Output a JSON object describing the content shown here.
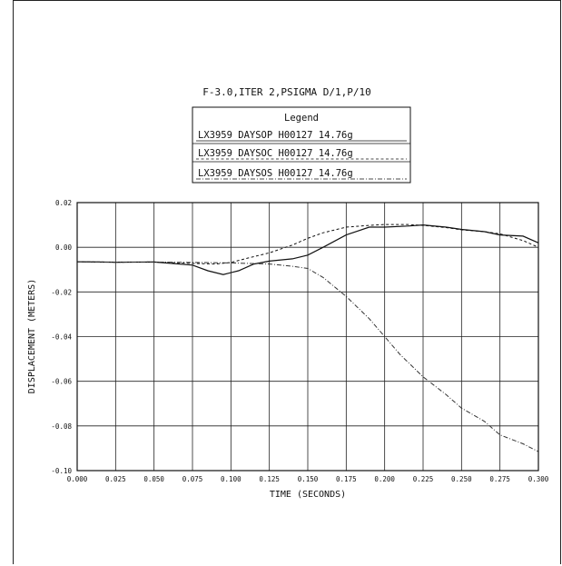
{
  "chart_data": {
    "type": "line",
    "title": "F-3.0,ITER 2,PSIGMA D/1,P/10",
    "legend_title": "Legend",
    "legend_position": "top-center",
    "xlabel": "TIME (SECONDS)",
    "ylabel": "DISPLACEMENT (METERS)",
    "xlim": [
      0.0,
      0.3
    ],
    "ylim": [
      -0.1,
      0.02
    ],
    "grid": true,
    "x_ticks": [
      0.0,
      0.025,
      0.05,
      0.075,
      0.1,
      0.125,
      0.15,
      0.175,
      0.2,
      0.225,
      0.25,
      0.275,
      0.3
    ],
    "x_tick_labels": [
      "0.000",
      "0.025",
      "0.050",
      "0.075",
      "0.100",
      "0.125",
      "0.150",
      "0.175",
      "0.200",
      "0.225",
      "0.250",
      "0.275",
      "0.300"
    ],
    "y_ticks": [
      0.02,
      0.0,
      -0.02,
      -0.04,
      -0.06,
      -0.08,
      -0.1
    ],
    "y_tick_labels": [
      "0.02",
      "0.00",
      "-0.02",
      "-0.04",
      "-0.06",
      "-0.08",
      "-0.10"
    ],
    "series": [
      {
        "name": "LX3959 DAYSOP  H00127  14.76g",
        "style": "solid",
        "color": "#111111",
        "x": [
          0.0,
          0.025,
          0.05,
          0.075,
          0.085,
          0.095,
          0.105,
          0.115,
          0.125,
          0.14,
          0.15,
          0.16,
          0.175,
          0.19,
          0.2,
          0.215,
          0.225,
          0.24,
          0.25,
          0.265,
          0.275,
          0.29,
          0.3
        ],
        "y": [
          -0.0065,
          -0.0067,
          -0.0066,
          -0.008,
          -0.0105,
          -0.0122,
          -0.0105,
          -0.0075,
          -0.0062,
          -0.0052,
          -0.0035,
          0.0,
          0.0055,
          0.009,
          0.009,
          0.0095,
          0.01,
          0.009,
          0.008,
          0.007,
          0.0055,
          0.005,
          0.002
        ]
      },
      {
        "name": "LX3959 DAYSOC  H00127  14.76g",
        "style": "dashed",
        "color": "#111111",
        "x": [
          0.0,
          0.025,
          0.05,
          0.075,
          0.09,
          0.1,
          0.11,
          0.125,
          0.14,
          0.15,
          0.16,
          0.175,
          0.19,
          0.2,
          0.215,
          0.225,
          0.24,
          0.25,
          0.265,
          0.275,
          0.29,
          0.3
        ],
        "y": [
          -0.0065,
          -0.0067,
          -0.0066,
          -0.0072,
          -0.0075,
          -0.0068,
          -0.005,
          -0.0025,
          0.001,
          0.004,
          0.0065,
          0.009,
          0.0098,
          0.0102,
          0.0102,
          0.0098,
          0.0088,
          0.0078,
          0.007,
          0.006,
          0.003,
          0.0
        ]
      },
      {
        "name": "LX3959 DAYSOS  H00127  14.76g",
        "style": "dash-dot",
        "color": "#333333",
        "x": [
          0.0,
          0.025,
          0.05,
          0.075,
          0.1,
          0.125,
          0.14,
          0.15,
          0.16,
          0.175,
          0.19,
          0.2,
          0.21,
          0.225,
          0.24,
          0.25,
          0.265,
          0.275,
          0.29,
          0.3
        ],
        "y": [
          -0.0065,
          -0.0067,
          -0.0066,
          -0.0068,
          -0.007,
          -0.0075,
          -0.0085,
          -0.0095,
          -0.0135,
          -0.022,
          -0.032,
          -0.04,
          -0.048,
          -0.058,
          -0.066,
          -0.072,
          -0.078,
          -0.084,
          -0.088,
          -0.0915
        ]
      }
    ]
  }
}
